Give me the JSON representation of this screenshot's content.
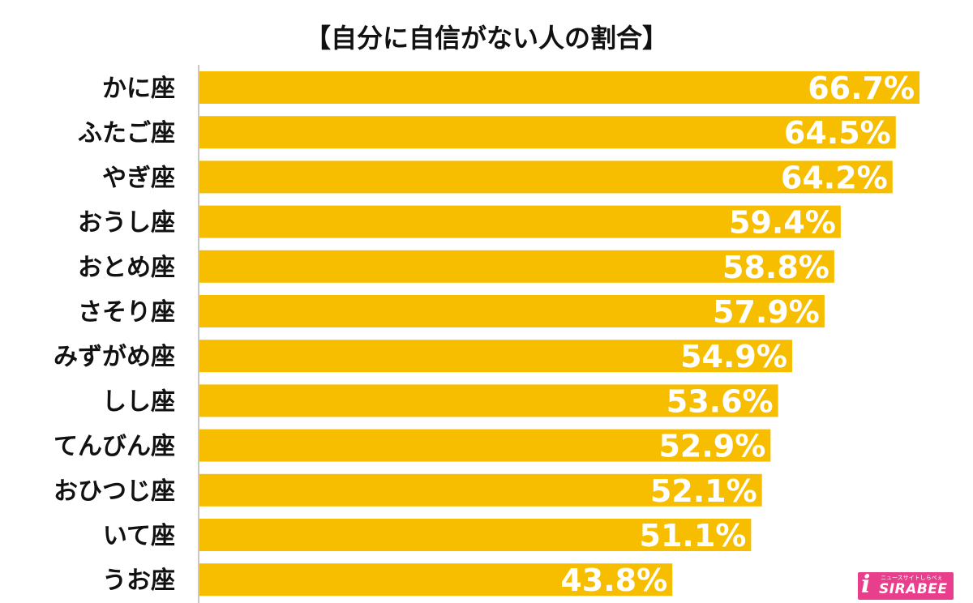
{
  "colors": {
    "bar": "#F7BE00",
    "axis": "#c8c8c8",
    "label_text": "#111111",
    "value_text": "#ffffff",
    "logo_bg": "#e83e8c"
  },
  "logo": {
    "mark": "i",
    "tagline": "ニュースサイトしらべぇ",
    "wordmark": "SIRABEE"
  },
  "chart_data": {
    "type": "bar",
    "orientation": "horizontal",
    "title": "【自分に自信がない人の割合】",
    "xlabel": "",
    "ylabel": "",
    "xlim": [
      0,
      70
    ],
    "grid": false,
    "legend": "none",
    "value_suffix": "%",
    "categories": [
      "かに座",
      "ふたご座",
      "やぎ座",
      "おうし座",
      "おとめ座",
      "さそり座",
      "みずがめ座",
      "しし座",
      "てんびん座",
      "おひつじ座",
      "いて座",
      "うお座"
    ],
    "values": [
      66.7,
      64.5,
      64.2,
      59.4,
      58.8,
      57.9,
      54.9,
      53.6,
      52.9,
      52.1,
      51.1,
      43.8
    ],
    "value_labels": [
      "66.7%",
      "64.5%",
      "64.2%",
      "59.4%",
      "58.8%",
      "57.9%",
      "54.9%",
      "53.6%",
      "52.9%",
      "52.1%",
      "51.1%",
      "43.8%"
    ]
  }
}
